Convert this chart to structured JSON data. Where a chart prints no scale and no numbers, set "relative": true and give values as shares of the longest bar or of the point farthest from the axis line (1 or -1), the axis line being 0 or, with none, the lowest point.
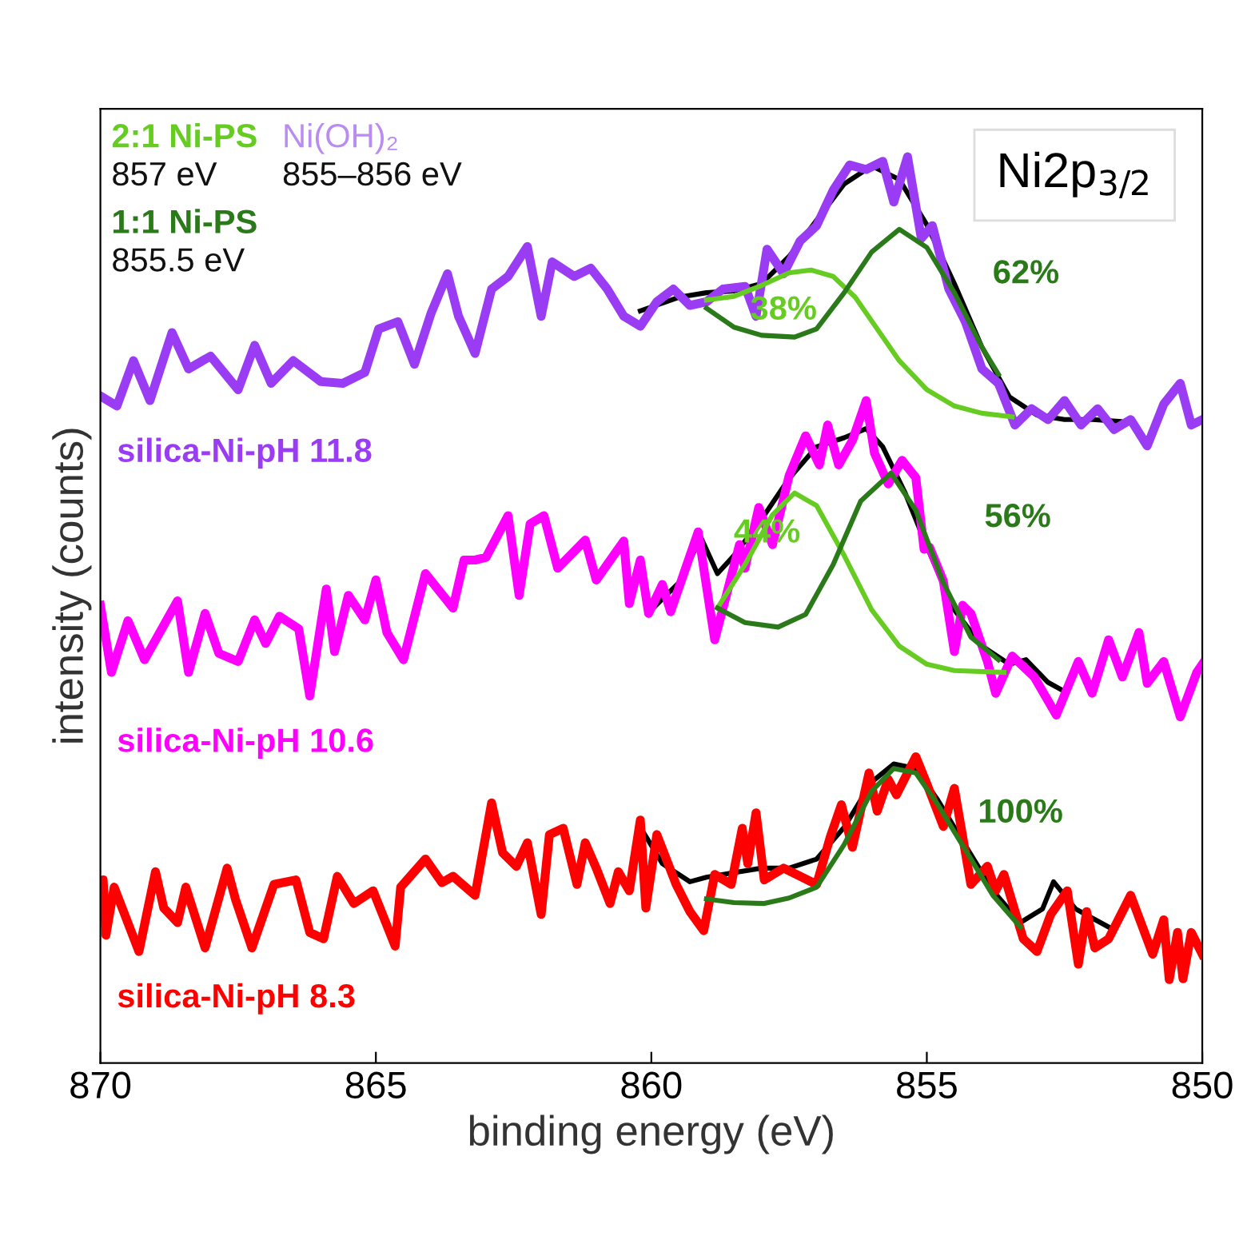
{
  "chart_data": {
    "type": "line",
    "title": "Ni2p$_{3/2}$",
    "xlabel": "binding energy (eV)",
    "ylabel": "intensity (counts)",
    "relative": true,
    "xlim": [
      870,
      850
    ],
    "xticks": [
      870,
      865,
      860,
      855,
      850
    ],
    "grid": false,
    "legend": false,
    "marker": "none",
    "line_style": "solid",
    "annotations": [
      "2:1 Ni-PS",
      "857 eV",
      "1:1 Ni-PS",
      "855.5 eV",
      "Ni(OH)₂",
      "855–856 eV"
    ],
    "series": [
      {
        "color": "#000000",
        "x": [
          860.2,
          859.5,
          859,
          858.5,
          858,
          857.5,
          857,
          856.5,
          856,
          855.5,
          855,
          854.5,
          854,
          853.5,
          853,
          852.5,
          852,
          851.5
        ],
        "values": [
          0.83,
          0.845,
          0.85,
          0.852,
          0.86,
          0.89,
          0.93,
          0.97,
          0.99,
          0.975,
          0.925,
          0.86,
          0.79,
          0.735,
          0.715,
          0.71,
          0.71,
          0.708
        ]
      },
      {
        "name": "silica-Ni-pH 11.8",
        "color": "#9b3cf5",
        "x": [
          870,
          869.7,
          869.4,
          869.1,
          868.7,
          868.4,
          868.0,
          867.5,
          867.2,
          866.9,
          866.5,
          866.0,
          865.6,
          865.2,
          864.95,
          864.6,
          864.3,
          864.0,
          863.7,
          863.5,
          863.2,
          862.9,
          862.6,
          862.25,
          862.0,
          861.8,
          861.4,
          861.1,
          860.8,
          860.5,
          860.2,
          859.9,
          859.6,
          859.3,
          859.0,
          858.7,
          858.3,
          858.1,
          857.9,
          857.6,
          857.3,
          857.0,
          856.7,
          856.4,
          856.1,
          855.8,
          855.6,
          855.35,
          855.1,
          854.9,
          854.6,
          854.3,
          854.0,
          853.7,
          853.4,
          853.1,
          852.8,
          852.5,
          852.2,
          851.9,
          851.6,
          851.3,
          851.0,
          850.7,
          850.4,
          850.2,
          850.0
        ],
        "values": [
          0.736,
          0.725,
          0.775,
          0.731,
          0.806,
          0.766,
          0.78,
          0.743,
          0.792,
          0.75,
          0.775,
          0.752,
          0.75,
          0.762,
          0.81,
          0.818,
          0.771,
          0.827,
          0.871,
          0.824,
          0.783,
          0.854,
          0.868,
          0.901,
          0.824,
          0.884,
          0.868,
          0.877,
          0.854,
          0.824,
          0.813,
          0.84,
          0.854,
          0.836,
          0.84,
          0.854,
          0.857,
          0.824,
          0.898,
          0.871,
          0.907,
          0.924,
          0.963,
          0.991,
          0.986,
          0.995,
          0.95,
          1.0,
          0.91,
          0.924,
          0.854,
          0.818,
          0.766,
          0.75,
          0.704,
          0.722,
          0.71,
          0.731,
          0.704,
          0.722,
          0.699,
          0.71,
          0.681,
          0.727,
          0.75,
          0.704,
          0.71
        ]
      },
      {
        "name": "38%",
        "color": "#66cc22",
        "x": [
          859,
          858.5,
          858,
          857.5,
          857.1,
          856.7,
          856.3,
          855.9,
          855.5,
          855.0,
          854.5,
          854,
          853.45
        ],
        "values": [
          0.842,
          0.846,
          0.858,
          0.872,
          0.875,
          0.868,
          0.845,
          0.81,
          0.775,
          0.743,
          0.725,
          0.717,
          0.713
        ]
      },
      {
        "name": "62%",
        "color": "#2a7a1a",
        "x": [
          859,
          858.5,
          858,
          857.4,
          857,
          856.5,
          856,
          855.5,
          855,
          854.5,
          854,
          853.7
        ],
        "values": [
          0.833,
          0.812,
          0.803,
          0.801,
          0.81,
          0.85,
          0.895,
          0.92,
          0.9,
          0.85,
          0.79,
          0.76
        ]
      },
      {
        "color": "#000000",
        "x": [
          860,
          859.5,
          859.1,
          858.8,
          858.5,
          858,
          857.5,
          857,
          856.5,
          856.1,
          855.8,
          855.4,
          855,
          854.5,
          854,
          853.5,
          853.2,
          852.8,
          852.5
        ],
        "values": [
          0.5,
          0.53,
          0.58,
          0.54,
          0.56,
          0.6,
          0.645,
          0.68,
          0.69,
          0.7,
          0.68,
          0.63,
          0.57,
          0.5,
          0.46,
          0.44,
          0.445,
          0.42,
          0.41
        ]
      },
      {
        "name": "silica-Ni-pH 10.6",
        "color": "#ff00ff",
        "x": [
          870,
          869.8,
          869.5,
          869.2,
          868.6,
          868.4,
          868.1,
          867.85,
          867.5,
          867.2,
          867.0,
          866.75,
          866.4,
          866.2,
          865.9,
          865.75,
          865.5,
          865.2,
          865.0,
          864.8,
          864.5,
          864.1,
          863.6,
          863.4,
          863.2,
          863.0,
          862.6,
          862.4,
          862.2,
          861.95,
          861.7,
          861.2,
          861.0,
          860.5,
          860.4,
          860.2,
          860.05,
          859.8,
          859.65,
          859.15,
          858.85,
          858.6,
          858.4,
          858.3,
          858.05,
          857.8,
          857.5,
          857.2,
          856.95,
          856.8,
          856.6,
          856.35,
          856.1,
          855.95,
          855.7,
          855.45,
          855.2,
          855.05,
          854.95,
          854.7,
          854.5,
          854.35,
          854.2,
          853.9,
          853.75,
          853.45,
          853.05,
          852.65,
          852.25,
          852.0,
          851.7,
          851.45,
          851.15,
          851.0,
          850.7,
          850.4,
          850.1,
          850.0
        ],
        "values": [
          0.505,
          0.431,
          0.488,
          0.445,
          0.51,
          0.431,
          0.496,
          0.452,
          0.443,
          0.489,
          0.463,
          0.493,
          0.479,
          0.405,
          0.523,
          0.454,
          0.516,
          0.489,
          0.533,
          0.475,
          0.445,
          0.54,
          0.502,
          0.555,
          0.555,
          0.558,
          0.604,
          0.516,
          0.595,
          0.604,
          0.546,
          0.577,
          0.533,
          0.576,
          0.507,
          0.555,
          0.496,
          0.528,
          0.498,
          0.586,
          0.467,
          0.525,
          0.572,
          0.546,
          0.613,
          0.572,
          0.648,
          0.692,
          0.66,
          0.704,
          0.66,
          0.687,
          0.731,
          0.673,
          0.639,
          0.665,
          0.646,
          0.567,
          0.569,
          0.532,
          0.454,
          0.505,
          0.496,
          0.443,
          0.408,
          0.449,
          0.426,
          0.384,
          0.443,
          0.408,
          0.467,
          0.426,
          0.475,
          0.419,
          0.443,
          0.382,
          0.431,
          0.44
        ]
      },
      {
        "name": "44%",
        "color": "#66cc22",
        "x": [
          858.8,
          858.3,
          857.8,
          857.4,
          857,
          856.5,
          856,
          855.5,
          855,
          854.5,
          853.6
        ],
        "values": [
          0.502,
          0.55,
          0.605,
          0.629,
          0.615,
          0.56,
          0.5,
          0.46,
          0.44,
          0.433,
          0.431
        ]
      },
      {
        "name": "56%",
        "color": "#2a7a1a",
        "x": [
          858.8,
          858.3,
          857.7,
          857.2,
          856.7,
          856.2,
          855.65,
          855.2,
          854.7,
          854.2,
          853.7
        ],
        "values": [
          0.502,
          0.486,
          0.481,
          0.495,
          0.55,
          0.62,
          0.651,
          0.61,
          0.53,
          0.47,
          0.445
        ]
      },
      {
        "color": "#000000",
        "x": [
          860.2,
          859.8,
          859.3,
          859,
          858.5,
          858,
          857.5,
          857,
          856.5,
          856,
          855.6,
          855.2,
          854.8,
          854.3,
          853.8,
          853.3,
          852.9,
          852.7,
          852.3,
          852.0,
          851.7
        ],
        "values": [
          0.26,
          0.22,
          0.2,
          0.205,
          0.21,
          0.215,
          0.215,
          0.225,
          0.26,
          0.31,
          0.33,
          0.325,
          0.29,
          0.24,
          0.19,
          0.155,
          0.17,
          0.2,
          0.17,
          0.16,
          0.15
        ]
      },
      {
        "name": "silica-Ni-pH 8.3",
        "color": "#ff0000",
        "x": [
          870,
          869.95,
          869.9,
          869.75,
          869.3,
          869.0,
          868.85,
          868.6,
          868.45,
          868.1,
          867.7,
          867.55,
          867.25,
          866.85,
          866.45,
          866.2,
          865.95,
          865.7,
          865.4,
          865.05,
          864.65,
          864.55,
          864.1,
          863.8,
          863.6,
          863.2,
          862.9,
          862.7,
          862.45,
          862.25,
          862.0,
          861.85,
          861.6,
          861.35,
          861.2,
          861.0,
          860.75,
          860.6,
          860.4,
          860.2,
          860.1,
          859.9,
          859.55,
          859.3,
          859.05,
          858.85,
          858.55,
          858.35,
          858.25,
          858.1,
          857.95,
          857.6,
          857.3,
          857.0,
          856.75,
          856.55,
          856.35,
          856.05,
          855.9,
          855.7,
          855.55,
          855.2,
          855.0,
          854.7,
          854.5,
          854.2,
          853.9,
          853.75,
          853.6,
          853.25,
          853.0,
          852.75,
          852.45,
          852.25,
          852.1,
          851.95,
          851.7,
          851.3,
          850.9,
          850.7,
          850.6,
          850.45,
          850.35,
          850.2,
          850.0
        ],
        "values": [
          0.18,
          0.202,
          0.141,
          0.194,
          0.123,
          0.211,
          0.171,
          0.155,
          0.194,
          0.127,
          0.215,
          0.181,
          0.127,
          0.197,
          0.202,
          0.144,
          0.137,
          0.206,
          0.176,
          0.19,
          0.129,
          0.194,
          0.225,
          0.199,
          0.206,
          0.185,
          0.287,
          0.232,
          0.217,
          0.243,
          0.164,
          0.252,
          0.259,
          0.197,
          0.243,
          0.215,
          0.176,
          0.211,
          0.19,
          0.268,
          0.171,
          0.252,
          0.197,
          0.167,
          0.146,
          0.208,
          0.197,
          0.259,
          0.22,
          0.276,
          0.202,
          0.215,
          0.206,
          0.197,
          0.25,
          0.285,
          0.238,
          0.32,
          0.278,
          0.313,
          0.296,
          0.338,
          0.308,
          0.261,
          0.303,
          0.197,
          0.217,
          0.19,
          0.208,
          0.137,
          0.123,
          0.164,
          0.19,
          0.109,
          0.167,
          0.127,
          0.137,
          0.185,
          0.12,
          0.158,
          0.092,
          0.144,
          0.093,
          0.144,
          0.12
        ]
      },
      {
        "name": "100%",
        "color": "#2a7a1a",
        "x": [
          859,
          858.5,
          857.95,
          857.5,
          857,
          856.5,
          856,
          855.6,
          855.2,
          854.8,
          854.3,
          853.8,
          853.3
        ],
        "values": [
          0.181,
          0.177,
          0.176,
          0.182,
          0.194,
          0.241,
          0.3,
          0.325,
          0.32,
          0.285,
          0.235,
          0.185,
          0.15
        ]
      }
    ]
  }
}
